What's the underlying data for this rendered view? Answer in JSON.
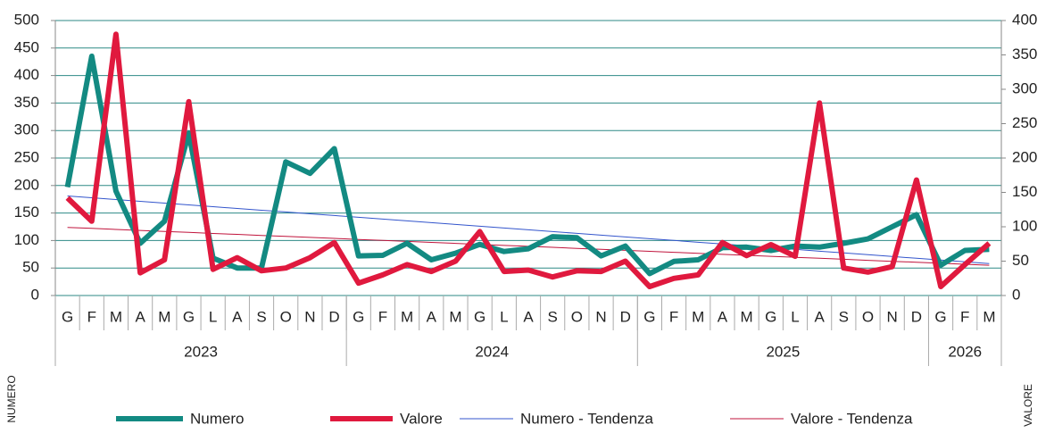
{
  "chart_data": {
    "type": "line",
    "y_label": "NUMERO",
    "y2_label": "VALORE",
    "category_groups": [
      {
        "name": "2023",
        "categories": [
          "G",
          "F",
          "M",
          "A",
          "M",
          "G",
          "L",
          "A",
          "S",
          "O",
          "N",
          "D"
        ]
      },
      {
        "name": "2024",
        "categories": [
          "G",
          "F",
          "M",
          "A",
          "M",
          "G",
          "L",
          "A",
          "S",
          "O",
          "N",
          "D"
        ]
      },
      {
        "name": "2025",
        "categories": [
          "G",
          "F",
          "M",
          "A",
          "M",
          "G",
          "L",
          "A",
          "S",
          "O",
          "N",
          "D"
        ]
      },
      {
        "name": "2026",
        "categories": [
          "G",
          "F",
          "M"
        ]
      }
    ],
    "ylim": [
      0,
      500
    ],
    "yticks": [
      0,
      50,
      100,
      150,
      200,
      250,
      300,
      350,
      400,
      450,
      500
    ],
    "y2lim": [
      0,
      400
    ],
    "y2ticks": [
      0,
      50,
      100,
      150,
      200,
      250,
      300,
      350,
      400
    ],
    "grid": true,
    "grid_color": "#2e8a86",
    "series": [
      {
        "name": "Numero",
        "color": "#138a82",
        "width": 6,
        "values": [
          197,
          435,
          190,
          95,
          135,
          295,
          68,
          50,
          50,
          243,
          222,
          267,
          72,
          73,
          95,
          65,
          77,
          93,
          80,
          85,
          107,
          105,
          72,
          90,
          40,
          62,
          65,
          87,
          88,
          82,
          90,
          88,
          95,
          103,
          125,
          147,
          55,
          82,
          84
        ]
      },
      {
        "name": "Valore",
        "color": "#e0193e",
        "width": 6,
        "axis": "y2",
        "values": [
          142,
          108,
          380,
          33,
          52,
          282,
          38,
          55,
          36,
          40,
          55,
          77,
          18,
          30,
          45,
          35,
          50,
          93,
          35,
          37,
          27,
          36,
          35,
          50,
          13,
          25,
          30,
          77,
          58,
          74,
          57,
          280,
          40,
          34,
          42,
          168,
          13,
          45,
          76
        ]
      },
      {
        "name": "Numero - Tendenza",
        "color": "#3355cc",
        "width": 1,
        "values": [
          181,
          177.8,
          174.5,
          171.3,
          168.1,
          164.8,
          161.6,
          158.3,
          155.1,
          151.9,
          148.6,
          145.4,
          142.2,
          138.9,
          135.7,
          132.4,
          129.2,
          126.0,
          122.7,
          119.5,
          116.3,
          113.0,
          109.8,
          106.5,
          103.3,
          100.1,
          96.8,
          93.6,
          90.4,
          87.1,
          83.9,
          80.6,
          77.4,
          74.2,
          70.9,
          67.7,
          64.5,
          61.2,
          58.0
        ]
      },
      {
        "name": "Valore - Tendenza",
        "color": "#c0143c",
        "width": 1,
        "axis": "y2",
        "values": [
          99,
          97.6,
          96.1,
          94.7,
          93.2,
          91.8,
          90.3,
          88.9,
          87.4,
          86.0,
          84.5,
          83.1,
          81.6,
          80.2,
          78.7,
          77.3,
          75.8,
          74.4,
          72.9,
          71.5,
          70.1,
          68.6,
          67.2,
          65.7,
          64.3,
          62.8,
          61.4,
          59.9,
          58.5,
          57.0,
          55.6,
          54.1,
          52.7,
          51.2,
          49.8,
          48.4,
          46.9,
          45.5,
          44.0
        ]
      }
    ]
  }
}
